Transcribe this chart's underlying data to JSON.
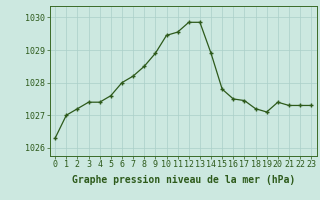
{
  "x": [
    0,
    1,
    2,
    3,
    4,
    5,
    6,
    7,
    8,
    9,
    10,
    11,
    12,
    13,
    14,
    15,
    16,
    17,
    18,
    19,
    20,
    21,
    22,
    23
  ],
  "y": [
    1026.3,
    1027.0,
    1027.2,
    1027.4,
    1027.4,
    1027.6,
    1028.0,
    1028.2,
    1028.5,
    1028.9,
    1029.45,
    1029.55,
    1029.85,
    1029.85,
    1028.9,
    1027.8,
    1027.5,
    1027.45,
    1027.2,
    1027.1,
    1027.4,
    1027.3,
    1027.3,
    1027.3
  ],
  "line_color": "#2d5a1b",
  "marker_color": "#2d5a1b",
  "bg_color": "#cce8e0",
  "grid_color": "#aacfc8",
  "axis_color": "#3a6b28",
  "xlabel": "Graphe pression niveau de la mer (hPa)",
  "ylim": [
    1025.75,
    1030.35
  ],
  "yticks": [
    1026,
    1027,
    1028,
    1029,
    1030
  ],
  "xticks": [
    0,
    1,
    2,
    3,
    4,
    5,
    6,
    7,
    8,
    9,
    10,
    11,
    12,
    13,
    14,
    15,
    16,
    17,
    18,
    19,
    20,
    21,
    22,
    23
  ],
  "xlabel_fontsize": 7,
  "tick_fontsize": 6,
  "xlabel_color": "#2d5a1b",
  "tick_color": "#2d5a1b"
}
